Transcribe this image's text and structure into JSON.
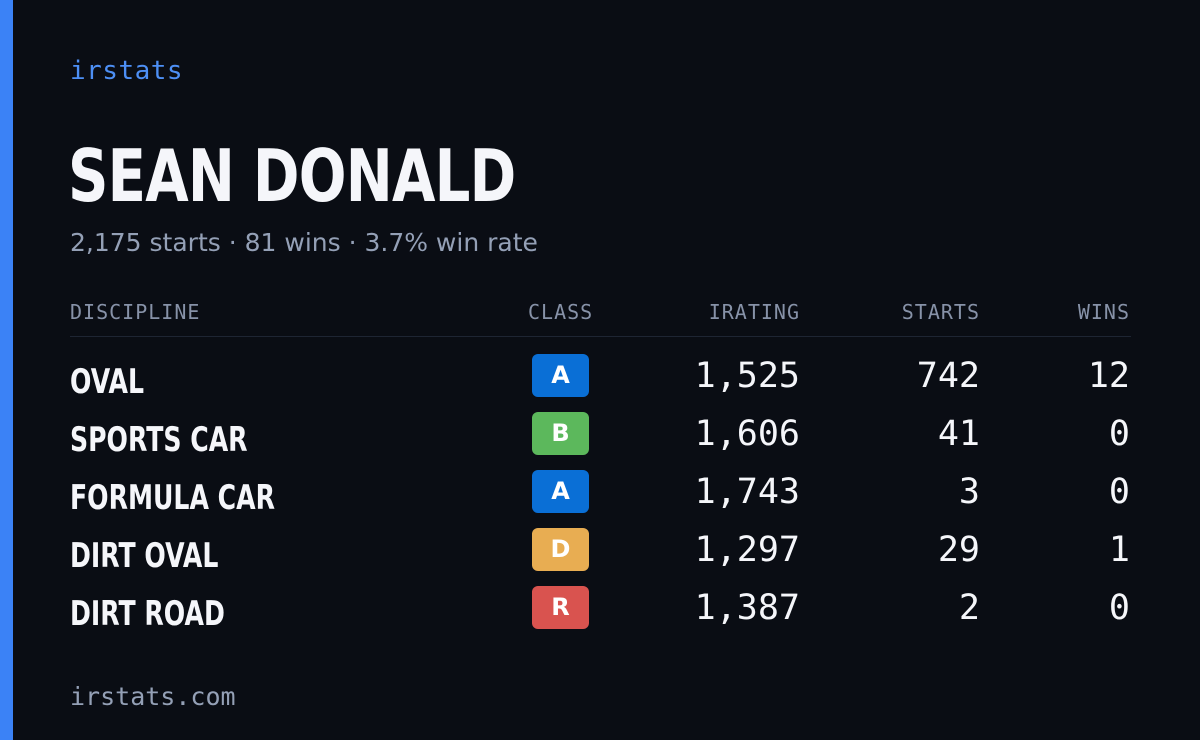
{
  "brand": {
    "name": "irstats",
    "accent_color": "#3b82f6"
  },
  "driver": {
    "name": "SEAN DONALD",
    "summary": "2,175 starts · 81 wins · 3.7% win rate"
  },
  "table": {
    "headers": {
      "discipline": "DISCIPLINE",
      "class": "CLASS",
      "irating": "IRATING",
      "starts": "STARTS",
      "wins": "WINS"
    },
    "rows": [
      {
        "discipline": "OVAL",
        "class": "A",
        "class_color": "#0a6fd6",
        "irating": "1,525",
        "starts": "742",
        "wins": "12"
      },
      {
        "discipline": "SPORTS CAR",
        "class": "B",
        "class_color": "#5cb85c",
        "irating": "1,606",
        "starts": "41",
        "wins": "0"
      },
      {
        "discipline": "FORMULA CAR",
        "class": "A",
        "class_color": "#0a6fd6",
        "irating": "1,743",
        "starts": "3",
        "wins": "0"
      },
      {
        "discipline": "DIRT OVAL",
        "class": "D",
        "class_color": "#e8ad52",
        "irating": "1,297",
        "starts": "29",
        "wins": "1"
      },
      {
        "discipline": "DIRT ROAD",
        "class": "R",
        "class_color": "#d9534f",
        "irating": "1,387",
        "starts": "2",
        "wins": "0"
      }
    ]
  },
  "footer": {
    "url": "irstats.com"
  }
}
